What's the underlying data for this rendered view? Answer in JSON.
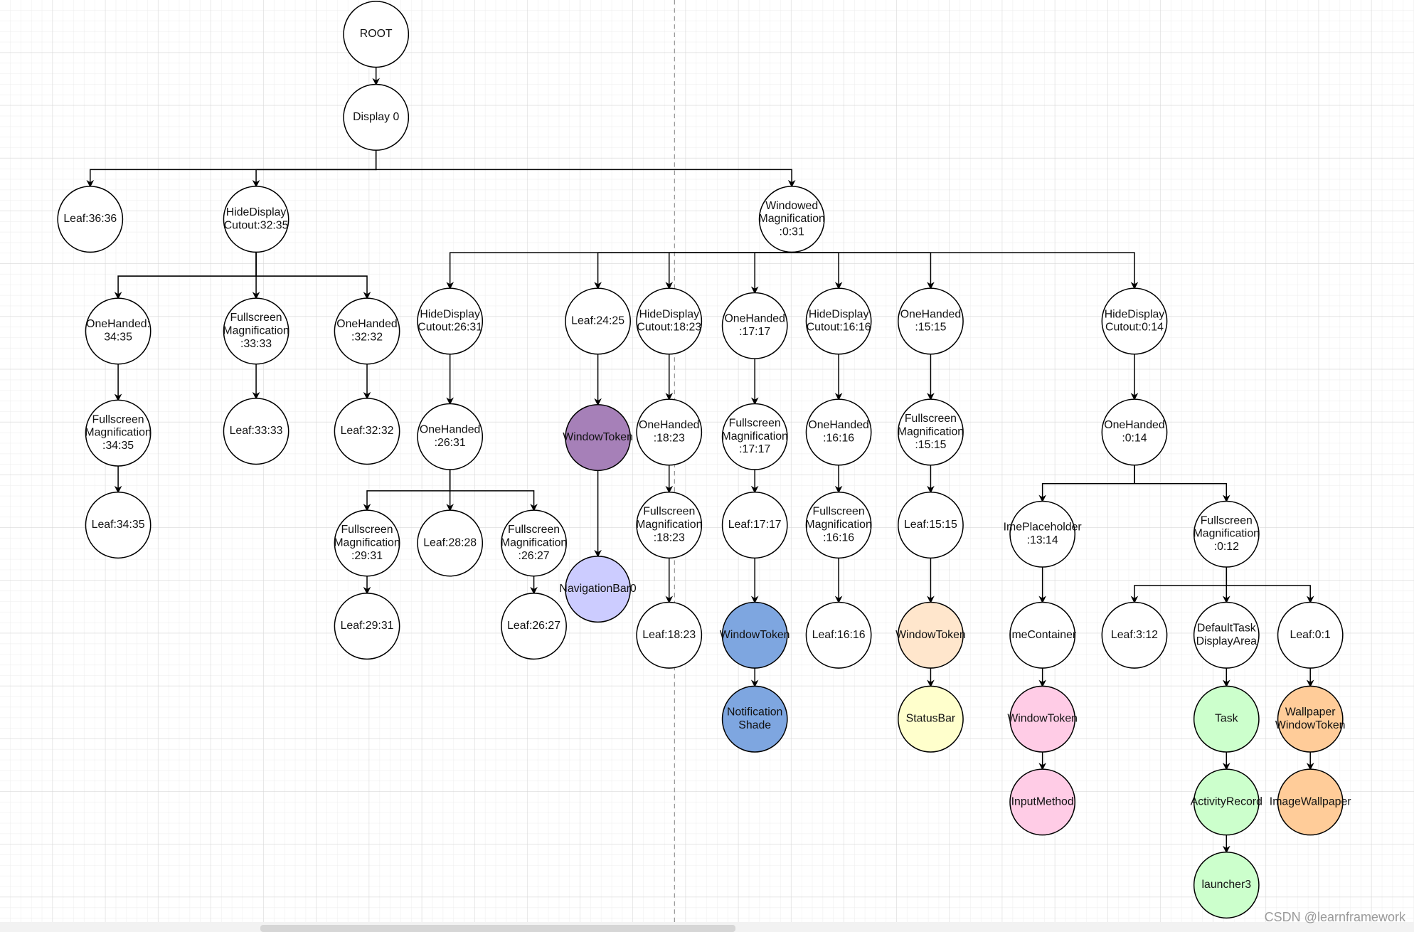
{
  "diagram": {
    "nodes": [
      {
        "id": "root",
        "label": "ROOT",
        "fill": "#ffffff"
      },
      {
        "id": "display0",
        "label": "Display 0",
        "parent": "root",
        "fill": "#ffffff"
      },
      {
        "id": "leaf3636",
        "label": "Leaf:36:36",
        "parent": "display0",
        "fill": "#ffffff"
      },
      {
        "id": "hdc3235",
        "label": "HideDisplay\nCutout:32:35",
        "parent": "display0",
        "fill": "#ffffff"
      },
      {
        "id": "wm031",
        "label": "Windowed\nMagnification\n:0:31",
        "parent": "display0",
        "fill": "#ffffff"
      },
      {
        "id": "oh3435",
        "label": "OneHanded:\n34:35",
        "parent": "hdc3235",
        "fill": "#ffffff"
      },
      {
        "id": "fm3333",
        "label": "Fullscreen\nMagnification\n:33:33",
        "parent": "hdc3235",
        "fill": "#ffffff"
      },
      {
        "id": "oh3232",
        "label": "OneHanded\n:32:32",
        "parent": "hdc3235",
        "fill": "#ffffff"
      },
      {
        "id": "fm3435",
        "label": "Fullscreen\nMagnification\n:34:35",
        "parent": "oh3435",
        "fill": "#ffffff"
      },
      {
        "id": "leaf3435",
        "label": "Leaf:34:35",
        "parent": "fm3435",
        "fill": "#ffffff"
      },
      {
        "id": "leaf3333",
        "label": "Leaf:33:33",
        "parent": "fm3333",
        "fill": "#ffffff"
      },
      {
        "id": "leaf3232",
        "label": "Leaf:32:32",
        "parent": "oh3232",
        "fill": "#ffffff"
      },
      {
        "id": "hdc2631",
        "label": "HideDisplay\nCutout:26:31",
        "parent": "wm031",
        "fill": "#ffffff"
      },
      {
        "id": "leaf2425",
        "label": "Leaf:24:25",
        "parent": "wm031",
        "fill": "#ffffff"
      },
      {
        "id": "hdc1823",
        "label": "HideDisplay\nCutout:18:23",
        "parent": "wm031",
        "fill": "#ffffff"
      },
      {
        "id": "oh1717",
        "label": "OneHanded\n:17:17",
        "parent": "wm031",
        "fill": "#ffffff"
      },
      {
        "id": "hdc1616",
        "label": "HideDisplay\nCutout:16:16",
        "parent": "wm031",
        "fill": "#ffffff"
      },
      {
        "id": "oh1515",
        "label": "OneHanded\n:15:15",
        "parent": "wm031",
        "fill": "#ffffff"
      },
      {
        "id": "hdc014",
        "label": "HideDisplay\nCutout:0:14",
        "parent": "wm031",
        "fill": "#ffffff"
      },
      {
        "id": "oh2631",
        "label": "OneHanded\n:26:31",
        "parent": "hdc2631",
        "fill": "#ffffff"
      },
      {
        "id": "fm2931",
        "label": "Fullscreen\nMagnification\n:29:31",
        "parent": "oh2631",
        "fill": "#ffffff"
      },
      {
        "id": "leaf2828",
        "label": "Leaf:28:28",
        "parent": "oh2631",
        "fill": "#ffffff"
      },
      {
        "id": "fm2627",
        "label": "Fullscreen\nMagnification\n:26:27",
        "parent": "oh2631",
        "fill": "#ffffff"
      },
      {
        "id": "leaf2931",
        "label": "Leaf:29:31",
        "parent": "fm2931",
        "fill": "#ffffff"
      },
      {
        "id": "leaf2627",
        "label": "Leaf:26:27",
        "parent": "fm2627",
        "fill": "#ffffff"
      },
      {
        "id": "wt2425",
        "label": "WindowToken",
        "parent": "leaf2425",
        "fill": "#a680b8"
      },
      {
        "id": "navbar0",
        "label": "NavigationBar0",
        "parent": "wt2425",
        "fill": "#ccccff"
      },
      {
        "id": "oh1823",
        "label": "OneHanded\n:18:23",
        "parent": "hdc1823",
        "fill": "#ffffff"
      },
      {
        "id": "fm1823",
        "label": "Fullscreen\nMagnification\n:18:23",
        "parent": "oh1823",
        "fill": "#ffffff"
      },
      {
        "id": "leaf1823",
        "label": "Leaf:18:23",
        "parent": "fm1823",
        "fill": "#ffffff"
      },
      {
        "id": "fm1717",
        "label": "Fullscreen\nMagnification\n:17:17",
        "parent": "oh1717",
        "fill": "#ffffff"
      },
      {
        "id": "leaf1717",
        "label": "Leaf:17:17",
        "parent": "fm1717",
        "fill": "#ffffff"
      },
      {
        "id": "wt1717",
        "label": "WindowToken",
        "parent": "leaf1717",
        "fill": "#7ea6e0"
      },
      {
        "id": "notifshade",
        "label": "Notification\nShade",
        "parent": "wt1717",
        "fill": "#7ea6e0"
      },
      {
        "id": "oh1616",
        "label": "OneHanded\n:16:16",
        "parent": "hdc1616",
        "fill": "#ffffff"
      },
      {
        "id": "fm1616",
        "label": "Fullscreen\nMagnification\n:16:16",
        "parent": "oh1616",
        "fill": "#ffffff"
      },
      {
        "id": "leaf1616",
        "label": "Leaf:16:16",
        "parent": "fm1616",
        "fill": "#ffffff"
      },
      {
        "id": "fm1515",
        "label": "Fullscreen\nMagnification\n:15:15",
        "parent": "oh1515",
        "fill": "#ffffff"
      },
      {
        "id": "leaf1515",
        "label": "Leaf:15:15",
        "parent": "fm1515",
        "fill": "#ffffff"
      },
      {
        "id": "wt1515",
        "label": "WindowToken",
        "parent": "leaf1515",
        "fill": "#ffe6cc"
      },
      {
        "id": "statusbar",
        "label": "StatusBar",
        "parent": "wt1515",
        "fill": "#ffffcc"
      },
      {
        "id": "oh014",
        "label": "OneHanded\n:0:14",
        "parent": "hdc014",
        "fill": "#ffffff"
      },
      {
        "id": "imeph",
        "label": "ImePlaceholder\n:13:14",
        "parent": "oh014",
        "fill": "#ffffff"
      },
      {
        "id": "fm012",
        "label": "Fullscreen\nMagnification\n:0:12",
        "parent": "oh014",
        "fill": "#ffffff"
      },
      {
        "id": "imecontainer",
        "label": "ImeContainer",
        "parent": "imeph",
        "fill": "#ffffff"
      },
      {
        "id": "wtime",
        "label": "WindowToken",
        "parent": "imecontainer",
        "fill": "#ffcce6"
      },
      {
        "id": "inputmethod",
        "label": "InputMethod",
        "parent": "wtime",
        "fill": "#ffcce6"
      },
      {
        "id": "leaf312",
        "label": "Leaf:3:12",
        "parent": "fm012",
        "fill": "#ffffff"
      },
      {
        "id": "dtda",
        "label": "DefaultTask\nDisplayArea",
        "parent": "fm012",
        "fill": "#ffffff"
      },
      {
        "id": "leaf01",
        "label": "Leaf:0:1",
        "parent": "fm012",
        "fill": "#ffffff"
      },
      {
        "id": "task",
        "label": "Task",
        "parent": "dtda",
        "fill": "#ccffcc"
      },
      {
        "id": "activityrecord",
        "label": "ActivityRecord",
        "parent": "task",
        "fill": "#ccffcc"
      },
      {
        "id": "launcher3",
        "label": "launcher3",
        "parent": "activityrecord",
        "fill": "#ccffcc"
      },
      {
        "id": "wallpaperwt",
        "label": "Wallpaper\nWindowToken",
        "parent": "leaf01",
        "fill": "#ffcc99"
      },
      {
        "id": "imagewallpaper",
        "label": "ImageWallpaper",
        "parent": "wallpaperwt",
        "fill": "#ffcc99"
      }
    ]
  },
  "watermark": "CSDN @learnframework"
}
